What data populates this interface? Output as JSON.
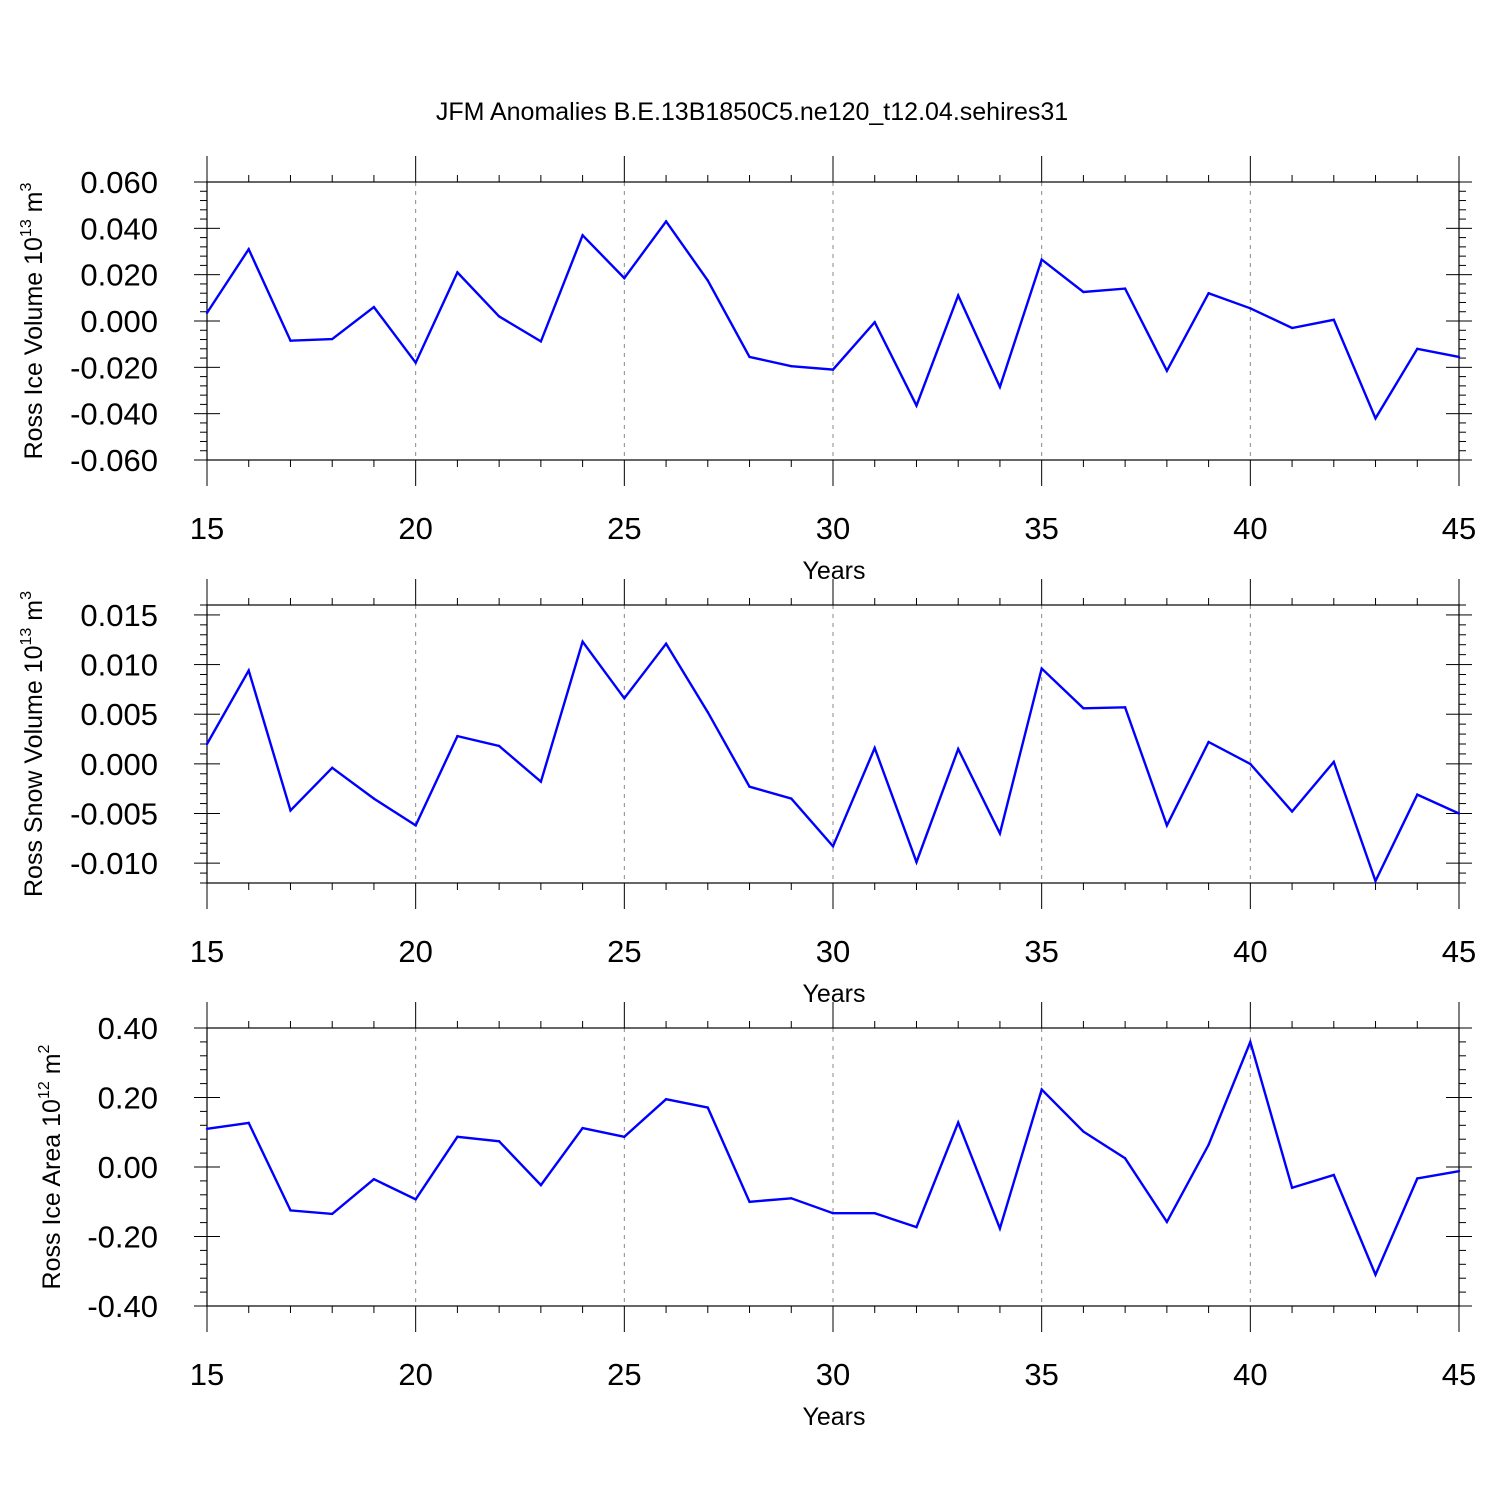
{
  "title": "JFM Anomalies B.E.13B1850C5.ne120_t12.04.sehires31",
  "chart_data": [
    {
      "type": "line",
      "ylabel": {
        "main": "Ross Ice Volume 10",
        "exp": "13",
        "unit": " m",
        "unit_exp": "3"
      },
      "xlabel": "Years",
      "xlim": [
        15,
        45
      ],
      "ylim": [
        -0.06,
        0.06
      ],
      "xticks": [
        15,
        20,
        25,
        30,
        35,
        40,
        45
      ],
      "yticks": [
        -0.06,
        -0.04,
        -0.02,
        0.0,
        0.02,
        0.04,
        0.06
      ],
      "ytick_labels": [
        "-0.060",
        "-0.040",
        "-0.020",
        "0.000",
        "0.020",
        "0.040",
        "0.060"
      ],
      "x": [
        15,
        16,
        17,
        18,
        19,
        20,
        21,
        22,
        23,
        24,
        25,
        26,
        27,
        28,
        29,
        30,
        31,
        32,
        33,
        34,
        35,
        36,
        37,
        38,
        39,
        40,
        41,
        42,
        43,
        44,
        45
      ],
      "series": [
        {
          "name": "Ross Ice Volume",
          "color": "#0000ff",
          "values": [
            0.0035,
            0.031,
            -0.0085,
            -0.0078,
            0.006,
            -0.018,
            0.021,
            0.002,
            -0.0088,
            0.037,
            0.0185,
            0.043,
            0.0175,
            -0.0155,
            -0.0195,
            -0.021,
            -0.0005,
            -0.0365,
            0.011,
            -0.0285,
            0.0265,
            0.0125,
            0.014,
            -0.0215,
            0.012,
            0.0055,
            -0.003,
            0.0005,
            -0.042,
            -0.012,
            -0.0155
          ]
        }
      ]
    },
    {
      "type": "line",
      "ylabel": {
        "main": "Ross Snow Volume 10",
        "exp": "13",
        "unit": " m",
        "unit_exp": "3"
      },
      "xlabel": "Years",
      "xlim": [
        15,
        45
      ],
      "ylim": [
        -0.012,
        0.016
      ],
      "xticks": [
        15,
        20,
        25,
        30,
        35,
        40,
        45
      ],
      "yticks": [
        -0.01,
        -0.005,
        0.0,
        0.005,
        0.01,
        0.015
      ],
      "ytick_labels": [
        "-0.010",
        "-0.005",
        "0.000",
        "0.005",
        "0.010",
        "0.015"
      ],
      "x": [
        15,
        16,
        17,
        18,
        19,
        20,
        21,
        22,
        23,
        24,
        25,
        26,
        27,
        28,
        29,
        30,
        31,
        32,
        33,
        34,
        35,
        36,
        37,
        38,
        39,
        40,
        41,
        42,
        43,
        44,
        45
      ],
      "series": [
        {
          "name": "Ross Snow Volume",
          "color": "#0000ff",
          "values": [
            0.002,
            0.0094,
            -0.0047,
            -0.0004,
            -0.0035,
            -0.0062,
            0.0028,
            0.0018,
            -0.0018,
            0.0123,
            0.0066,
            0.0121,
            0.0052,
            -0.0023,
            -0.0035,
            -0.0083,
            0.0016,
            -0.0099,
            0.0015,
            -0.007,
            0.0096,
            0.0056,
            0.0057,
            -0.0062,
            0.0022,
            0.0,
            -0.0048,
            0.0002,
            -0.0118,
            -0.0031,
            -0.005
          ]
        }
      ]
    },
    {
      "type": "line",
      "ylabel": {
        "main": "Ross Ice Area 10",
        "exp": "12",
        "unit": " m",
        "unit_exp": "2"
      },
      "xlabel": "Years",
      "xlim": [
        15,
        45
      ],
      "ylim": [
        -0.4,
        0.4
      ],
      "xticks": [
        15,
        20,
        25,
        30,
        35,
        40,
        45
      ],
      "yticks": [
        -0.4,
        -0.2,
        0.0,
        0.2,
        0.4
      ],
      "ytick_labels": [
        "-0.40",
        "-0.20",
        "0.00",
        "0.20",
        "0.40"
      ],
      "x": [
        15,
        16,
        17,
        18,
        19,
        20,
        21,
        22,
        23,
        24,
        25,
        26,
        27,
        28,
        29,
        30,
        31,
        32,
        33,
        34,
        35,
        36,
        37,
        38,
        39,
        40,
        41,
        42,
        43,
        44,
        45
      ],
      "series": [
        {
          "name": "Ross Ice Area",
          "color": "#0000ff",
          "values": [
            0.11,
            0.127,
            -0.125,
            -0.135,
            -0.035,
            -0.093,
            0.087,
            0.074,
            -0.052,
            0.112,
            0.087,
            0.195,
            0.171,
            -0.1,
            -0.09,
            -0.133,
            -0.133,
            -0.173,
            0.128,
            -0.177,
            0.223,
            0.102,
            0.025,
            -0.158,
            0.064,
            0.36,
            -0.06,
            -0.023,
            -0.31,
            -0.033,
            -0.012
          ]
        }
      ]
    }
  ]
}
